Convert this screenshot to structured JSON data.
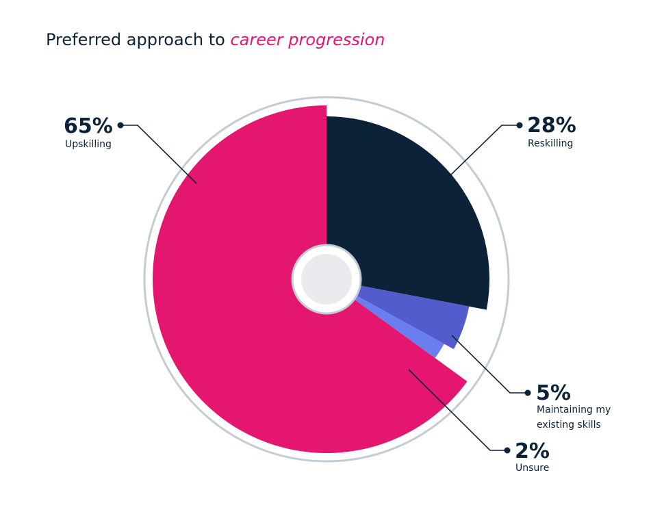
{
  "title": {
    "prefix": "Preferred approach to",
    "highlight": "career progression"
  },
  "colors": {
    "text": "#0c2238",
    "accent": "#e4166f",
    "ring": "#c2ccd5",
    "center": "#e9eaee"
  },
  "chart_data": {
    "type": "pie",
    "style": "polar-area with radii varying per slice, outer ring, center hole",
    "title": "Preferred approach to career progression",
    "unit": "%",
    "series": [
      {
        "label": "Reskilling",
        "value": 28,
        "value_text": "28%",
        "color": "#0c2238"
      },
      {
        "label": "Maintaining my existing skills",
        "value": 5,
        "value_text": "5%",
        "color": "#535ccc"
      },
      {
        "label": "Unsure",
        "value": 2,
        "value_text": "2%",
        "color": "#6b7ef0"
      },
      {
        "label": "Upskilling",
        "value": 65,
        "value_text": "65%",
        "color": "#e4166f"
      }
    ]
  }
}
